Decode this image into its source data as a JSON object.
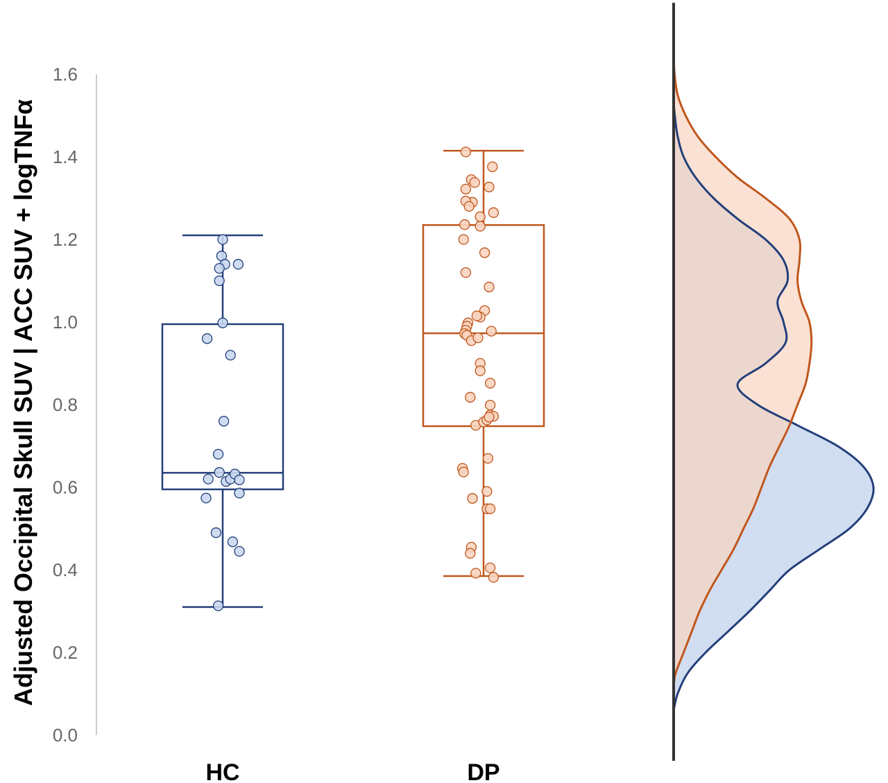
{
  "chart_data": {
    "type": "box",
    "ylabel": "Adjusted Occipital Skull SUV | ACC SUV + logTNFα",
    "ylim": [
      0,
      1.6
    ],
    "yticks": [
      "0.0",
      "0.2",
      "0.4",
      "0.6",
      "0.8",
      "1.0",
      "1.2",
      "1.4",
      "1.6"
    ],
    "categories": [
      "HC",
      "DP"
    ],
    "grid": false,
    "colors": {
      "HC": "#233f7a",
      "HC_fill": "#c9d7ef",
      "DP": "#c0561c",
      "DP_fill": "#f8d4c0"
    },
    "series": [
      {
        "name": "HC",
        "whisker_low": 0.31,
        "q1": 0.595,
        "median": 0.635,
        "q3": 0.995,
        "whisker_high": 1.21,
        "points": [
          [
            0.0,
            1.2
          ],
          [
            -0.01,
            1.16
          ],
          [
            0.02,
            1.14
          ],
          [
            -0.03,
            1.13
          ],
          [
            0.14,
            1.14
          ],
          [
            -0.03,
            1.1
          ],
          [
            0.0,
            0.998
          ],
          [
            -0.14,
            0.96
          ],
          [
            0.07,
            0.92
          ],
          [
            0.01,
            0.76
          ],
          [
            -0.04,
            0.68
          ],
          [
            -0.13,
            0.62
          ],
          [
            -0.03,
            0.636
          ],
          [
            0.03,
            0.614
          ],
          [
            0.07,
            0.62
          ],
          [
            0.11,
            0.632
          ],
          [
            0.15,
            0.618
          ],
          [
            0.15,
            0.586
          ],
          [
            -0.15,
            0.574
          ],
          [
            -0.06,
            0.49
          ],
          [
            0.09,
            0.468
          ],
          [
            0.15,
            0.445
          ],
          [
            -0.04,
            0.313
          ]
        ]
      },
      {
        "name": "DP",
        "whisker_low": 0.385,
        "q1": 0.748,
        "median": 0.973,
        "q3": 1.235,
        "whisker_high": 1.415,
        "points": [
          [
            -0.16,
            1.412
          ],
          [
            0.08,
            1.376
          ],
          [
            -0.11,
            1.345
          ],
          [
            -0.08,
            1.338
          ],
          [
            -0.16,
            1.322
          ],
          [
            0.05,
            1.327
          ],
          [
            -0.1,
            1.29
          ],
          [
            -0.16,
            1.293
          ],
          [
            -0.13,
            1.28
          ],
          [
            -0.03,
            1.255
          ],
          [
            0.09,
            1.265
          ],
          [
            -0.17,
            1.236
          ],
          [
            -0.03,
            1.232
          ],
          [
            -0.18,
            1.2
          ],
          [
            0.01,
            1.168
          ],
          [
            -0.16,
            1.12
          ],
          [
            0.05,
            1.085
          ],
          [
            0.01,
            1.028
          ],
          [
            -0.03,
            1.012
          ],
          [
            -0.06,
            1.015
          ],
          [
            -0.14,
            0.998
          ],
          [
            -0.15,
            0.99
          ],
          [
            -0.16,
            0.98
          ],
          [
            -0.17,
            0.972
          ],
          [
            0.07,
            0.978
          ],
          [
            -0.15,
            0.968
          ],
          [
            -0.11,
            0.955
          ],
          [
            -0.05,
            0.962
          ],
          [
            -0.03,
            0.9
          ],
          [
            -0.03,
            0.882
          ],
          [
            0.06,
            0.852
          ],
          [
            -0.12,
            0.818
          ],
          [
            0.06,
            0.799
          ],
          [
            0.06,
            0.775
          ],
          [
            0.09,
            0.772
          ],
          [
            -0.07,
            0.75
          ],
          [
            0.0,
            0.758
          ],
          [
            0.03,
            0.763
          ],
          [
            0.05,
            0.77
          ],
          [
            0.04,
            0.67
          ],
          [
            -0.19,
            0.646
          ],
          [
            -0.18,
            0.637
          ],
          [
            -0.1,
            0.573
          ],
          [
            0.03,
            0.59
          ],
          [
            0.03,
            0.548
          ],
          [
            0.06,
            0.548
          ],
          [
            -0.11,
            0.455
          ],
          [
            -0.12,
            0.44
          ],
          [
            0.06,
            0.405
          ],
          [
            -0.07,
            0.392
          ],
          [
            0.09,
            0.382
          ]
        ]
      }
    ],
    "density": {
      "HC": [
        [
          0.06,
          0.0
        ],
        [
          0.1,
          0.02
        ],
        [
          0.15,
          0.07
        ],
        [
          0.2,
          0.16
        ],
        [
          0.25,
          0.27
        ],
        [
          0.3,
          0.38
        ],
        [
          0.35,
          0.48
        ],
        [
          0.4,
          0.58
        ],
        [
          0.45,
          0.73
        ],
        [
          0.5,
          0.88
        ],
        [
          0.55,
          0.97
        ],
        [
          0.6,
          1.0
        ],
        [
          0.65,
          0.95
        ],
        [
          0.7,
          0.82
        ],
        [
          0.75,
          0.62
        ],
        [
          0.8,
          0.42
        ],
        [
          0.85,
          0.32
        ],
        [
          0.9,
          0.46
        ],
        [
          0.95,
          0.56
        ],
        [
          1.0,
          0.55
        ],
        [
          1.05,
          0.52
        ],
        [
          1.1,
          0.57
        ],
        [
          1.15,
          0.55
        ],
        [
          1.2,
          0.46
        ],
        [
          1.25,
          0.32
        ],
        [
          1.3,
          0.2
        ],
        [
          1.35,
          0.11
        ],
        [
          1.4,
          0.05
        ],
        [
          1.45,
          0.02
        ],
        [
          1.5,
          0.006
        ],
        [
          1.53,
          0.0
        ]
      ],
      "DP": [
        [
          0.12,
          0.0
        ],
        [
          0.15,
          0.01
        ],
        [
          0.2,
          0.05
        ],
        [
          0.25,
          0.09
        ],
        [
          0.3,
          0.13
        ],
        [
          0.35,
          0.18
        ],
        [
          0.4,
          0.24
        ],
        [
          0.45,
          0.3
        ],
        [
          0.5,
          0.35
        ],
        [
          0.55,
          0.4
        ],
        [
          0.6,
          0.44
        ],
        [
          0.65,
          0.48
        ],
        [
          0.7,
          0.53
        ],
        [
          0.75,
          0.58
        ],
        [
          0.8,
          0.62
        ],
        [
          0.85,
          0.66
        ],
        [
          0.9,
          0.68
        ],
        [
          0.95,
          0.69
        ],
        [
          1.0,
          0.68
        ],
        [
          1.05,
          0.64
        ],
        [
          1.1,
          0.62
        ],
        [
          1.15,
          0.63
        ],
        [
          1.2,
          0.63
        ],
        [
          1.25,
          0.58
        ],
        [
          1.3,
          0.46
        ],
        [
          1.35,
          0.32
        ],
        [
          1.4,
          0.21
        ],
        [
          1.45,
          0.12
        ],
        [
          1.5,
          0.06
        ],
        [
          1.55,
          0.02
        ],
        [
          1.6,
          0.005
        ],
        [
          1.64,
          0.0
        ]
      ]
    }
  }
}
